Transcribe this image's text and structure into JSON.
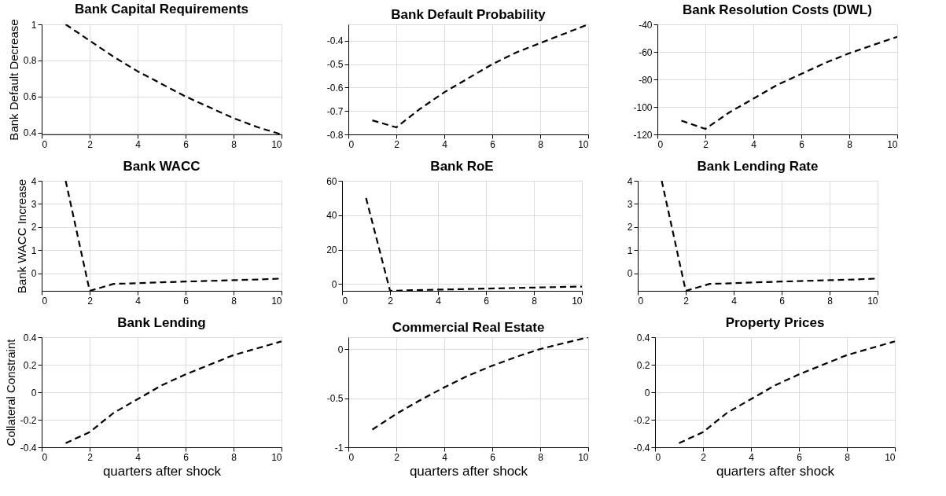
{
  "chart_data": [
    {
      "type": "line",
      "title": "Bank Capital Requirements",
      "ylabel": "Bank Default Decrease",
      "x": [
        1,
        2,
        3,
        4,
        5,
        6,
        7,
        8,
        9,
        10
      ],
      "series": [
        {
          "color": "#000000",
          "values": [
            1,
            0.91,
            0.82,
            0.74,
            0.67,
            0.6,
            0.54,
            0.48,
            0.43,
            0.39
          ]
        }
      ],
      "xlim": [
        0,
        10
      ],
      "xticks": [
        0,
        2,
        4,
        6,
        8,
        10
      ],
      "ylim": [
        0.39,
        1
      ],
      "yticks": [
        0.4,
        0.6,
        0.8,
        1
      ],
      "grid": true,
      "line_style": "dashed"
    },
    {
      "type": "line",
      "title": "Bank Default Probability",
      "x": [
        1,
        2,
        3,
        4,
        5,
        6,
        7,
        8,
        9,
        10
      ],
      "series": [
        {
          "color": "#000000",
          "values": [
            -0.74,
            -0.77,
            -0.69,
            -0.62,
            -0.56,
            -0.5,
            -0.45,
            -0.41,
            -0.37,
            -0.33
          ]
        }
      ],
      "xlim": [
        0,
        10
      ],
      "xticks": [
        0,
        2,
        4,
        6,
        8,
        10
      ],
      "ylim": [
        -0.8,
        -0.33
      ],
      "yticks": [
        -0.8,
        -0.7,
        -0.6,
        -0.5,
        -0.4
      ],
      "grid": true,
      "line_style": "dashed"
    },
    {
      "type": "line",
      "title": "Bank Resolution Costs (DWL)",
      "x": [
        1,
        2,
        3,
        4,
        5,
        6,
        7,
        8,
        9,
        10
      ],
      "series": [
        {
          "color": "#000000",
          "values": [
            -110,
            -116,
            -104,
            -94,
            -84,
            -76,
            -68,
            -61,
            -55,
            -49
          ]
        }
      ],
      "xlim": [
        0,
        10
      ],
      "xticks": [
        0,
        2,
        4,
        6,
        8,
        10
      ],
      "ylim": [
        -120,
        -40
      ],
      "yticks": [
        -120,
        -100,
        -80,
        -60,
        -40
      ],
      "grid": true,
      "line_style": "dashed"
    },
    {
      "type": "line",
      "title": "Bank WACC",
      "ylabel": "Bank WACC Increase",
      "x": [
        1,
        2,
        3,
        4,
        5,
        6,
        7,
        8,
        9,
        10
      ],
      "series": [
        {
          "color": "#000000",
          "values": [
            4,
            -0.75,
            -0.45,
            -0.42,
            -0.38,
            -0.35,
            -0.32,
            -0.29,
            -0.26,
            -0.22
          ]
        }
      ],
      "xlim": [
        0,
        10
      ],
      "xticks": [
        0,
        2,
        4,
        6,
        8,
        10
      ],
      "ylim": [
        -0.75,
        4
      ],
      "yticks": [
        0,
        1,
        2,
        3,
        4
      ],
      "grid": true,
      "line_style": "dashed"
    },
    {
      "type": "line",
      "title": "Bank RoE",
      "x": [
        1,
        2,
        3,
        4,
        5,
        6,
        7,
        8,
        9,
        10
      ],
      "series": [
        {
          "color": "#000000",
          "values": [
            50,
            -4,
            -3.6,
            -3.3,
            -3,
            -2.7,
            -2.4,
            -2.1,
            -1.8,
            -1.5
          ]
        }
      ],
      "xlim": [
        0,
        10
      ],
      "xticks": [
        0,
        2,
        4,
        6,
        8,
        10
      ],
      "ylim": [
        -4,
        60
      ],
      "yticks": [
        0,
        20,
        40,
        60
      ],
      "grid": true,
      "line_style": "dashed"
    },
    {
      "type": "line",
      "title": "Bank Lending Rate",
      "x": [
        1,
        2,
        3,
        4,
        5,
        6,
        7,
        8,
        9,
        10
      ],
      "series": [
        {
          "color": "#000000",
          "values": [
            4,
            -0.75,
            -0.45,
            -0.42,
            -0.38,
            -0.35,
            -0.32,
            -0.29,
            -0.26,
            -0.22
          ]
        }
      ],
      "xlim": [
        0,
        10
      ],
      "xticks": [
        0,
        2,
        4,
        6,
        8,
        10
      ],
      "ylim": [
        -0.75,
        4
      ],
      "yticks": [
        0,
        1,
        2,
        3,
        4
      ],
      "grid": true,
      "line_style": "dashed"
    },
    {
      "type": "line",
      "title": "Bank Lending",
      "ylabel": "Collateral Constraint",
      "xlabel": "quarters after shock",
      "x": [
        1,
        2,
        3,
        4,
        5,
        6,
        7,
        8,
        9,
        10
      ],
      "series": [
        {
          "color": "#000000",
          "values": [
            -0.37,
            -0.29,
            -0.15,
            -0.05,
            0.05,
            0.13,
            0.2,
            0.27,
            0.32,
            0.37
          ]
        }
      ],
      "xlim": [
        0,
        10
      ],
      "xticks": [
        0,
        2,
        4,
        6,
        8,
        10
      ],
      "ylim": [
        -0.4,
        0.4
      ],
      "yticks": [
        -0.4,
        -0.2,
        0,
        0.2,
        0.4
      ],
      "grid": true,
      "line_style": "dashed"
    },
    {
      "type": "line",
      "title": "Commercial Real Estate",
      "xlabel": "quarters after shock",
      "x": [
        1,
        2,
        3,
        4,
        5,
        6,
        7,
        8,
        9,
        10
      ],
      "series": [
        {
          "color": "#000000",
          "values": [
            -0.82,
            -0.66,
            -0.52,
            -0.39,
            -0.27,
            -0.17,
            -0.08,
            0,
            0.06,
            0.12
          ]
        }
      ],
      "xlim": [
        0,
        10
      ],
      "xticks": [
        0,
        2,
        4,
        6,
        8,
        10
      ],
      "ylim": [
        -1,
        0.12
      ],
      "yticks": [
        -1,
        -0.5,
        0
      ],
      "grid": true,
      "line_style": "dashed"
    },
    {
      "type": "line",
      "title": "Property Prices",
      "xlabel": "quarters after shock",
      "x": [
        1,
        2,
        3,
        4,
        5,
        6,
        7,
        8,
        9,
        10
      ],
      "series": [
        {
          "color": "#000000",
          "values": [
            -0.37,
            -0.29,
            -0.15,
            -0.05,
            0.05,
            0.13,
            0.2,
            0.27,
            0.32,
            0.37
          ]
        }
      ],
      "xlim": [
        0,
        10
      ],
      "xticks": [
        0,
        2,
        4,
        6,
        8,
        10
      ],
      "ylim": [
        -0.4,
        0.4
      ],
      "yticks": [
        -0.4,
        -0.2,
        0,
        0.2,
        0.4
      ],
      "grid": true,
      "line_style": "dashed"
    }
  ]
}
